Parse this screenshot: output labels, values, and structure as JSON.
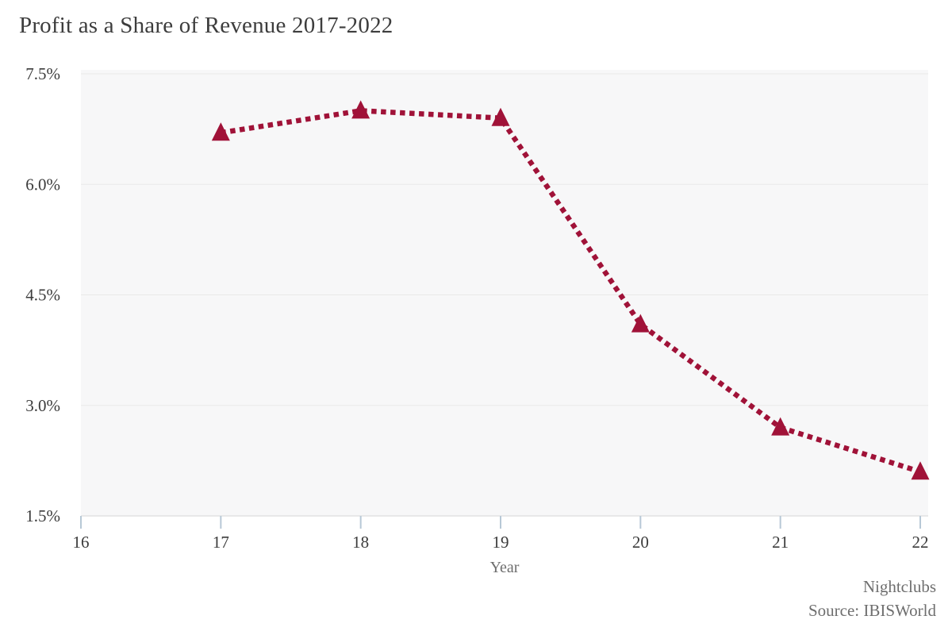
{
  "title": "Profit as a Share of Revenue 2017-2022",
  "footer": {
    "industry": "Nightclubs",
    "source": "Source: IBISWorld"
  },
  "chart_data": {
    "type": "line",
    "title": "Profit as a Share of Revenue 2017-2022",
    "xlabel": "Year",
    "ylabel": "",
    "x": [
      17,
      18,
      19,
      20,
      21,
      22
    ],
    "series": [
      {
        "name": "Profit as a Share of Revenue",
        "values": [
          6.7,
          7.0,
          6.9,
          4.1,
          2.7,
          2.1
        ]
      }
    ],
    "xlim": [
      16,
      22
    ],
    "ylim": [
      1.5,
      7.5
    ],
    "x_ticks": [
      16,
      17,
      18,
      19,
      20,
      21,
      22
    ],
    "x_tick_labels": [
      "16",
      "17",
      "18",
      "19",
      "20",
      "21",
      "22"
    ],
    "y_ticks": [
      1.5,
      3.0,
      4.5,
      6.0,
      7.5
    ],
    "y_tick_labels": [
      "1.5%",
      "3.0%",
      "4.5%",
      "6.0%",
      "7.5%"
    ],
    "gridline_values": [
      3.0,
      4.5,
      6.0,
      7.5
    ],
    "grid": true,
    "legend": false,
    "line_style": "dotted",
    "marker": "triangle",
    "colors": {
      "line": "#A01238",
      "marker": "#A01238",
      "plot_background": "#f7f7f8",
      "gridline": "#e9e9e9",
      "axis_line": "#d6d6d6",
      "tick_mark": "#b7c8d6",
      "axis_text": "#3b3b3b",
      "muted_text": "#6e6e6e"
    }
  }
}
